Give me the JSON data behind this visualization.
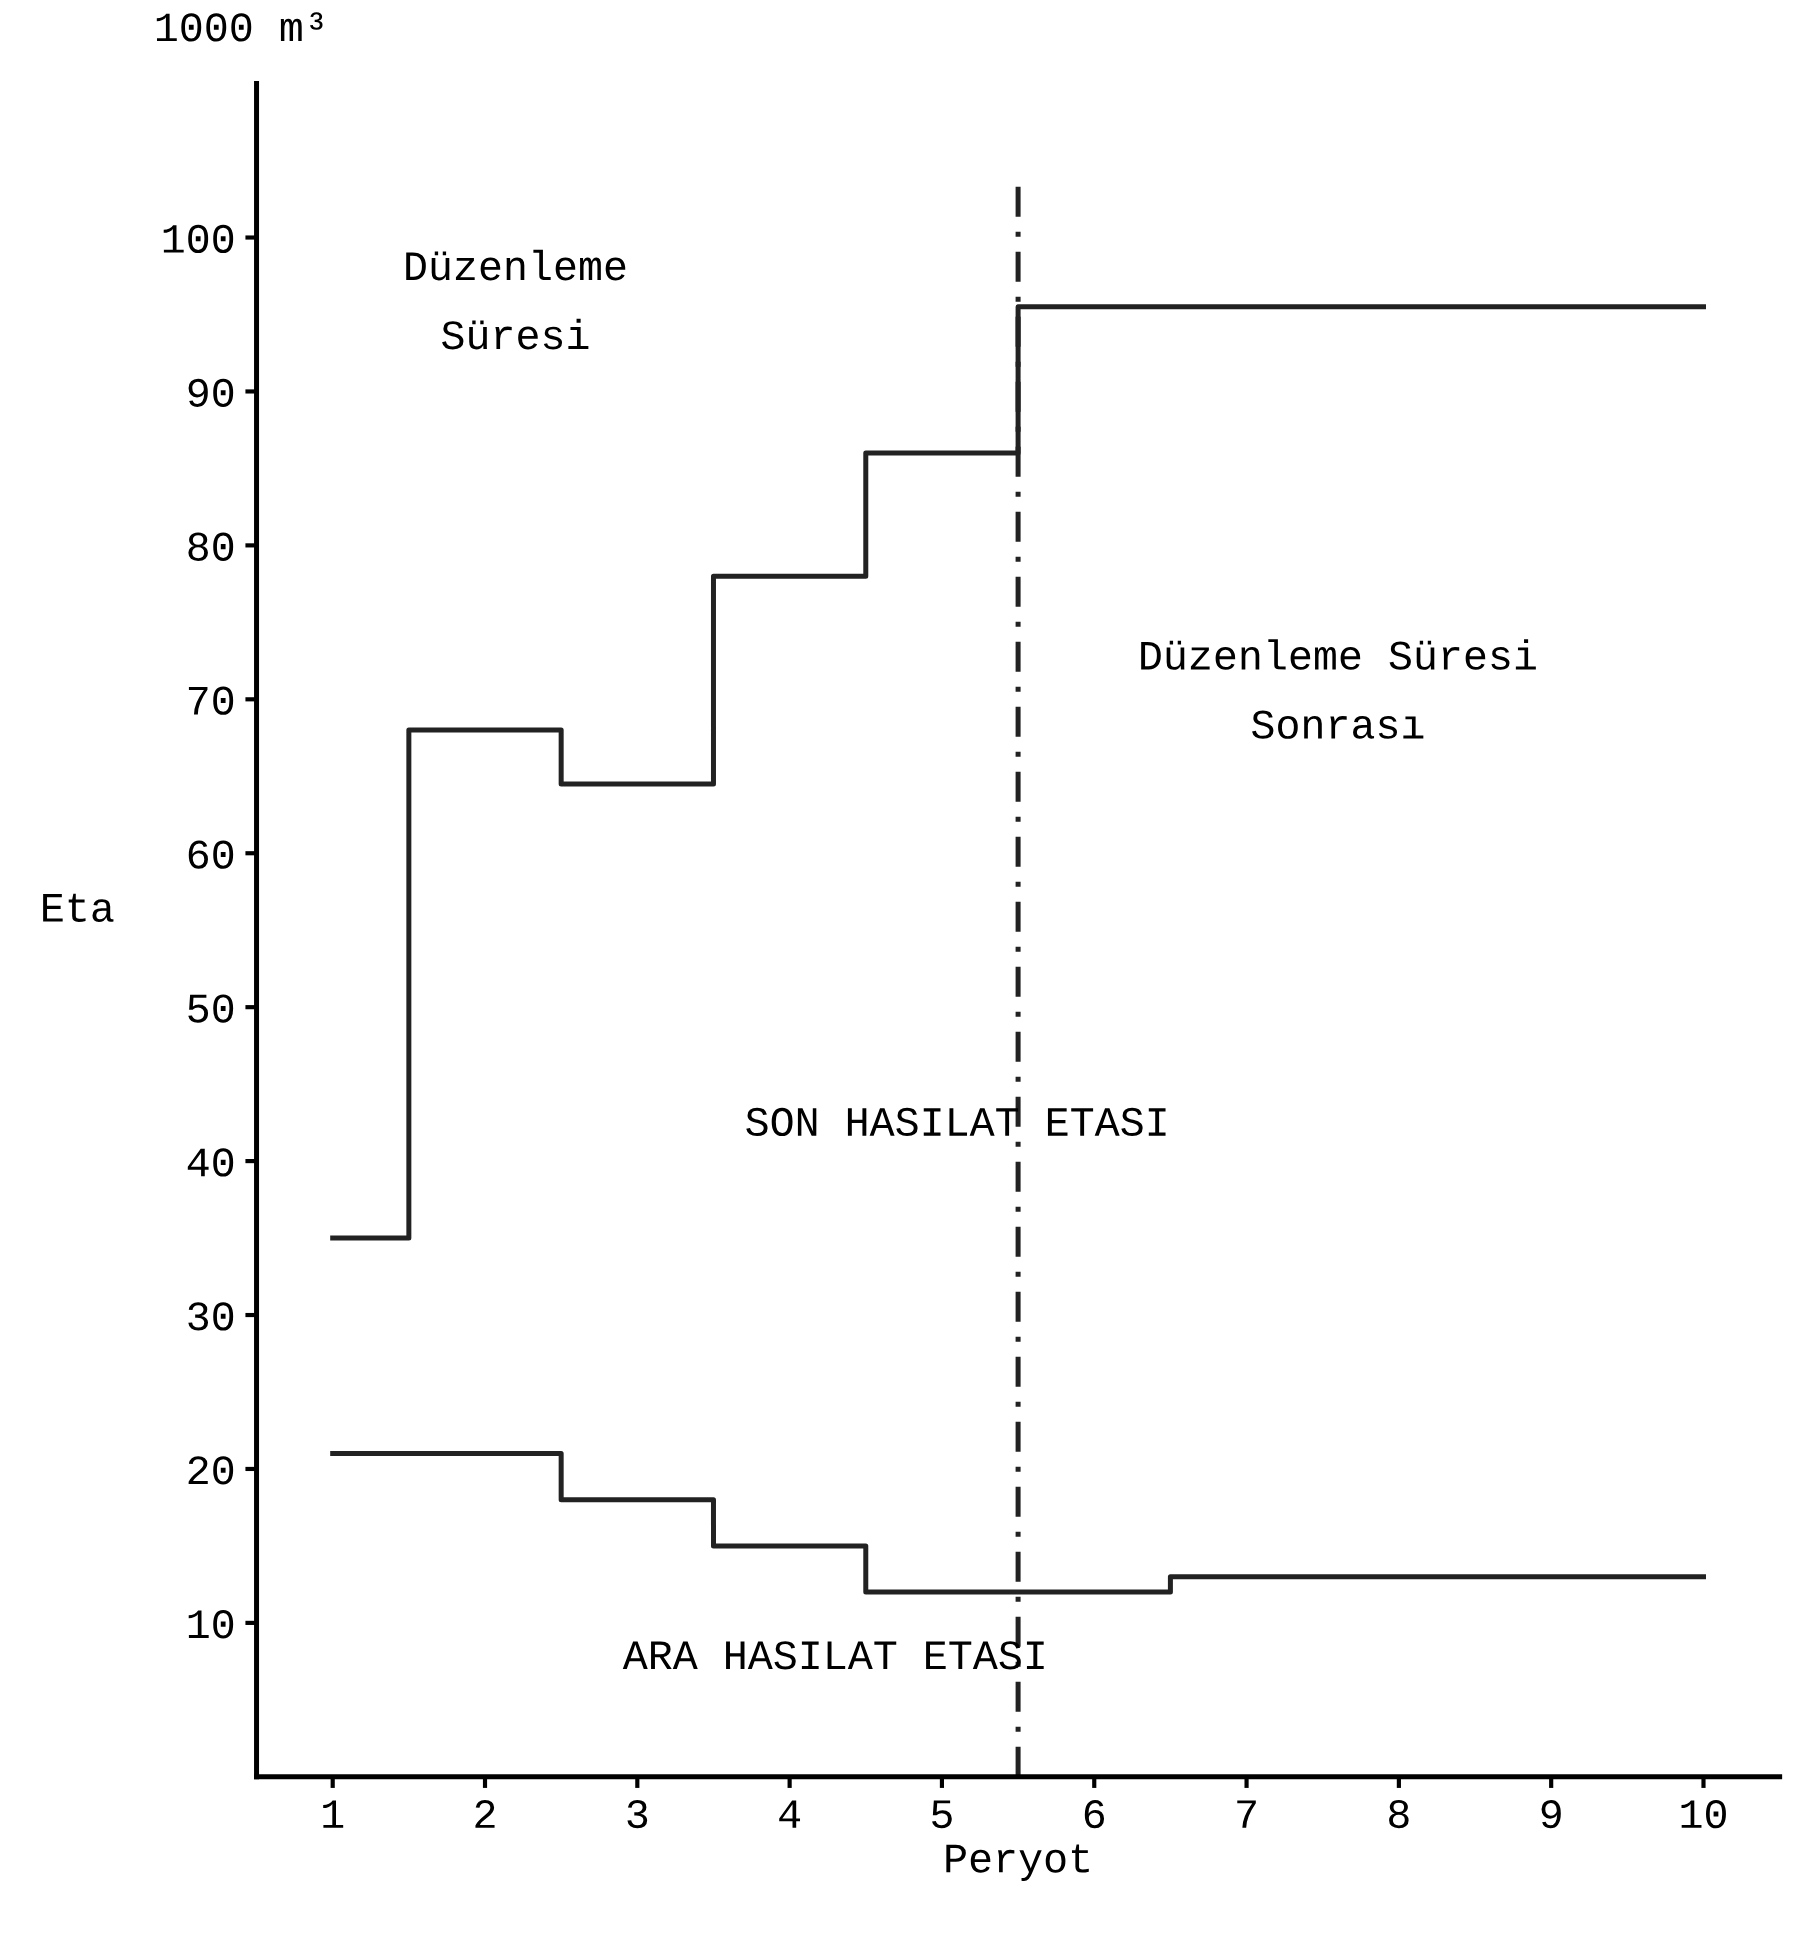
{
  "chart_data": {
    "type": "step",
    "xlabel": "Peryot",
    "ylabel": "Eta",
    "x": [
      1,
      2,
      3,
      4,
      5,
      6,
      7,
      8,
      9,
      10
    ],
    "series": [
      {
        "color": "#222222",
        "values": [
          35,
          68,
          64.5,
          78,
          86,
          95.5,
          95.5,
          95.5,
          95.5,
          95.5
        ]
      },
      {
        "color": "#222222",
        "values": [
          21,
          21,
          18,
          15,
          12,
          12,
          13,
          13,
          13,
          13
        ]
      }
    ],
    "xlim": [
      0.5,
      10.5
    ],
    "xticks": [
      1,
      2,
      3,
      4,
      5,
      6,
      7,
      8,
      9,
      10
    ],
    "ylim": [
      0,
      110
    ],
    "yticks": [
      10,
      20,
      30,
      40,
      50,
      60,
      70,
      80,
      90,
      100
    ],
    "ref_lines": [
      {
        "axis": "x",
        "value": 5.5,
        "color": "#222222",
        "line_style": "dashed"
      }
    ],
    "annotations": [
      "1000 m³",
      "Düzenleme\nSüresi",
      "Düzenleme Süresi\nSonrası",
      "SON HASILAT ETASI",
      "ARA HASILAT ETASI"
    ],
    "grid": false,
    "legend": false
  }
}
